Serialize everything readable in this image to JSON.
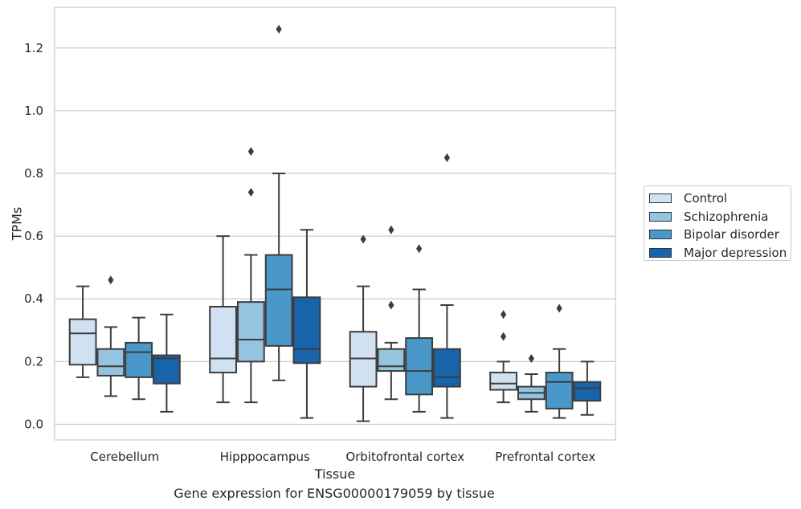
{
  "chart_data": {
    "type": "box",
    "title": "",
    "caption": "Gene expression for ENSG00000179059 by tissue",
    "xlabel": "Tissue",
    "ylabel": "TPMs",
    "ylim": [
      -0.05,
      1.33
    ],
    "yticks": [
      "0.0",
      "0.2",
      "0.4",
      "0.6",
      "0.8",
      "1.0",
      "1.2"
    ],
    "ytick_values": [
      0.0,
      0.2,
      0.4,
      0.6,
      0.8,
      1.0,
      1.2
    ],
    "grid": "horizontal",
    "legend_position": "right",
    "categories": [
      "Cerebellum",
      "Hipppocampus",
      "Orbitofrontal cortex",
      "Prefrontal cortex"
    ],
    "series": [
      {
        "name": "Control",
        "color": "#d0e1f2",
        "boxes": [
          {
            "whisker_low": 0.15,
            "q1": 0.19,
            "median": 0.29,
            "q3": 0.335,
            "whisker_high": 0.44,
            "outliers": []
          },
          {
            "whisker_low": 0.07,
            "q1": 0.165,
            "median": 0.21,
            "q3": 0.375,
            "whisker_high": 0.6,
            "outliers": []
          },
          {
            "whisker_low": 0.01,
            "q1": 0.12,
            "median": 0.21,
            "q3": 0.295,
            "whisker_high": 0.44,
            "outliers": [
              0.59
            ]
          },
          {
            "whisker_low": 0.07,
            "q1": 0.11,
            "median": 0.13,
            "q3": 0.165,
            "whisker_high": 0.2,
            "outliers": [
              0.28,
              0.35
            ]
          }
        ]
      },
      {
        "name": "Schizophrenia",
        "color": "#94c4df",
        "boxes": [
          {
            "whisker_low": 0.09,
            "q1": 0.155,
            "median": 0.185,
            "q3": 0.24,
            "whisker_high": 0.31,
            "outliers": [
              0.46
            ]
          },
          {
            "whisker_low": 0.07,
            "q1": 0.2,
            "median": 0.27,
            "q3": 0.39,
            "whisker_high": 0.54,
            "outliers": [
              0.74,
              0.87
            ]
          },
          {
            "whisker_low": 0.08,
            "q1": 0.17,
            "median": 0.185,
            "q3": 0.24,
            "whisker_high": 0.26,
            "outliers": [
              0.38,
              0.62
            ]
          },
          {
            "whisker_low": 0.04,
            "q1": 0.08,
            "median": 0.1,
            "q3": 0.12,
            "whisker_high": 0.16,
            "outliers": [
              0.21
            ]
          }
        ]
      },
      {
        "name": "Bipolar disorder",
        "color": "#4a98c9",
        "boxes": [
          {
            "whisker_low": 0.08,
            "q1": 0.15,
            "median": 0.23,
            "q3": 0.26,
            "whisker_high": 0.34,
            "outliers": []
          },
          {
            "whisker_low": 0.14,
            "q1": 0.25,
            "median": 0.43,
            "q3": 0.54,
            "whisker_high": 0.8,
            "outliers": [
              1.26
            ]
          },
          {
            "whisker_low": 0.04,
            "q1": 0.095,
            "median": 0.17,
            "q3": 0.275,
            "whisker_high": 0.43,
            "outliers": [
              0.56
            ]
          },
          {
            "whisker_low": 0.02,
            "q1": 0.05,
            "median": 0.135,
            "q3": 0.165,
            "whisker_high": 0.24,
            "outliers": [
              0.37
            ]
          }
        ]
      },
      {
        "name": "Major depression",
        "color": "#1764ab",
        "boxes": [
          {
            "whisker_low": 0.04,
            "q1": 0.13,
            "median": 0.21,
            "q3": 0.22,
            "whisker_high": 0.35,
            "outliers": []
          },
          {
            "whisker_low": 0.02,
            "q1": 0.195,
            "median": 0.24,
            "q3": 0.405,
            "whisker_high": 0.62,
            "outliers": []
          },
          {
            "whisker_low": 0.02,
            "q1": 0.12,
            "median": 0.15,
            "q3": 0.24,
            "whisker_high": 0.38,
            "outliers": [
              0.85
            ]
          },
          {
            "whisker_low": 0.03,
            "q1": 0.075,
            "median": 0.115,
            "q3": 0.135,
            "whisker_high": 0.2,
            "outliers": []
          }
        ]
      }
    ]
  }
}
